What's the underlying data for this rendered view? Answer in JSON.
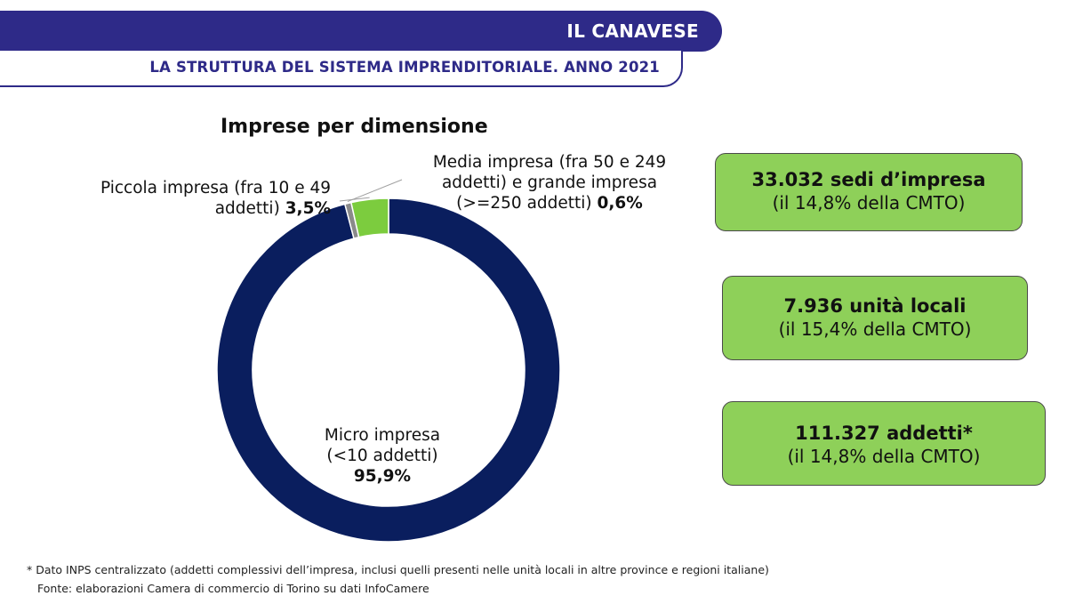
{
  "header": {
    "region": "IL CANAVESE",
    "subtitle": "LA STRUTTURA DEL SISTEMA IMPRENDITORIALE. ANNO 2021"
  },
  "chart_data": {
    "type": "pie",
    "variant": "donut",
    "title": "Imprese per dimensione",
    "series": [
      {
        "name": "Micro impresa (<10 addetti)",
        "value": 95.9,
        "color": "#0a1e5e"
      },
      {
        "name": "Piccola impresa (fra 10 e 49 addetti)",
        "value": 3.5,
        "color": "#7ccc3e"
      },
      {
        "name": "Media impresa (fra 50 e 249 addetti) e grande impresa (>=250 addetti)",
        "value": 0.6,
        "color": "#8a8a8a"
      }
    ],
    "labels": {
      "piccola": {
        "text": "Piccola impresa (fra 10 e 49 addetti)",
        "value": "3,5%"
      },
      "media": {
        "text": "Media impresa (fra 50 e 249 addetti) e grande impresa (>=250 addetti)",
        "value": "0,6%"
      },
      "micro_line1": "Micro impresa",
      "micro_line2": "(<10 addetti)",
      "micro_value": "95,9%"
    }
  },
  "kpis": [
    {
      "value": "33.032 sedi d’impresa",
      "sub": "(il 14,8% della CMTO)"
    },
    {
      "value": "7.936 unità locali",
      "sub": "(il 15,4% della CMTO)"
    },
    {
      "value": "111.327 addetti*",
      "sub": "(il 14,8% della CMTO)"
    }
  ],
  "footnotes": {
    "note": "* Dato INPS centralizzato (addetti complessivi dell’impresa, inclusi quelli presenti nelle unità locali in altre province e regioni italiane)",
    "source": "Fonte: elaborazioni Camera di commercio di Torino su dati InfoCamere"
  }
}
